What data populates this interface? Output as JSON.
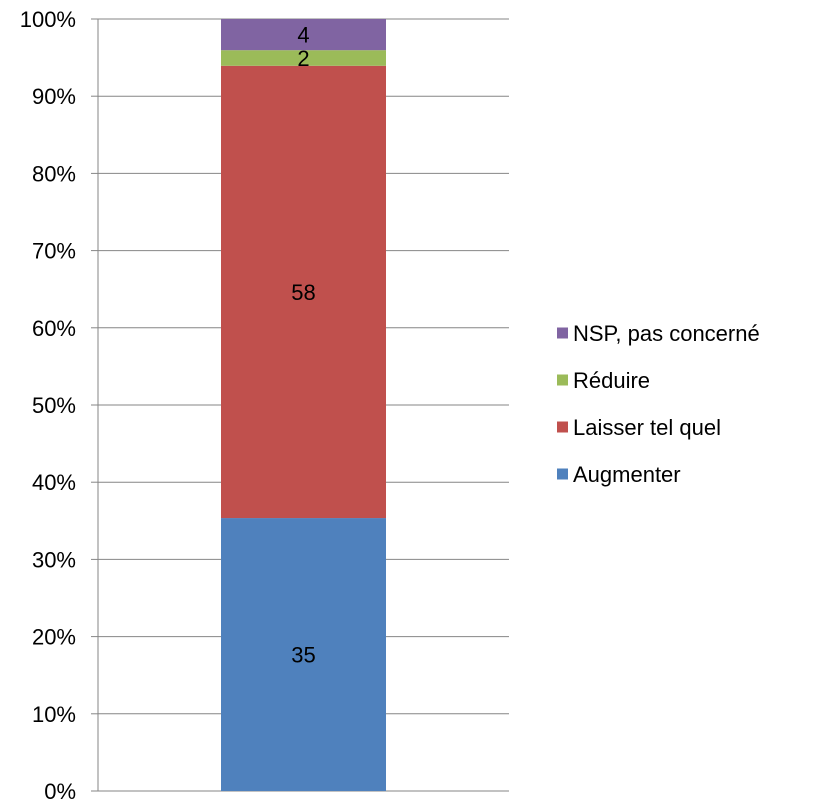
{
  "chart_data": {
    "type": "bar",
    "stacked": true,
    "percent_axis": true,
    "categories": [
      ""
    ],
    "series": [
      {
        "name": "Augmenter",
        "values": [
          35
        ],
        "color": "#4f81bd"
      },
      {
        "name": "Laisser tel quel",
        "values": [
          58
        ],
        "color": "#c0504d"
      },
      {
        "name": "Réduire",
        "values": [
          2
        ],
        "color": "#9bbb59"
      },
      {
        "name": "NSP, pas concerné",
        "values": [
          4
        ],
        "color": "#8064a2"
      }
    ],
    "ylim": [
      0,
      100
    ],
    "yticks": [
      "0%",
      "10%",
      "20%",
      "30%",
      "40%",
      "50%",
      "60%",
      "70%",
      "80%",
      "90%",
      "100%"
    ],
    "grid": true,
    "legend": {
      "position": "right",
      "order": [
        "NSP, pas concerné",
        "Réduire",
        "Laisser tel quel",
        "Augmenter"
      ]
    }
  }
}
